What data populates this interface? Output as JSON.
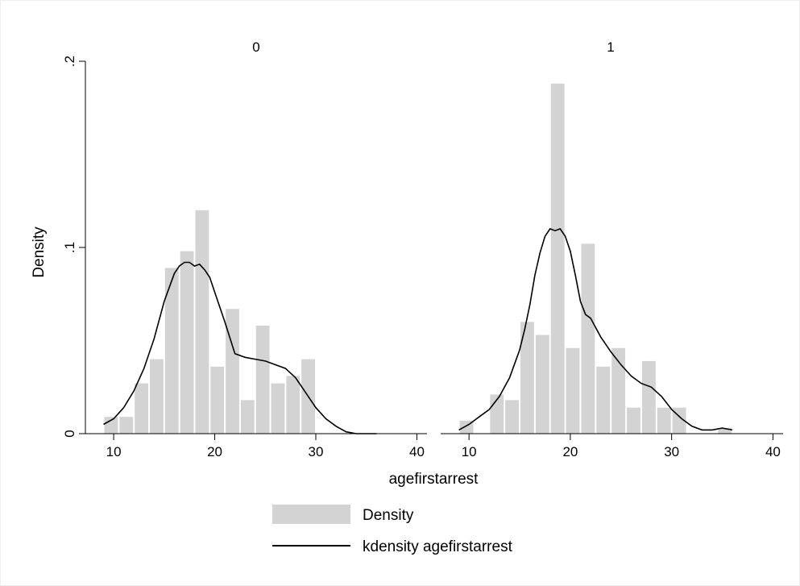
{
  "chart_data": {
    "type": "bar",
    "subtype": "histogram with kernel density overlay",
    "ylabel": "Density",
    "xlabel": "agefirstarrest",
    "xlim": [
      8,
      41
    ],
    "ylim": [
      0,
      0.2
    ],
    "xticks": [
      10,
      20,
      30,
      40
    ],
    "xtick_labels": [
      "10",
      "20",
      "30",
      "40"
    ],
    "yticks": [
      0,
      0.1,
      0.2
    ],
    "ytick_labels": [
      "0",
      ".1",
      ".2"
    ],
    "grid": false,
    "legend": {
      "placement": "bottom-center",
      "entries": [
        "Density",
        "kdensity agefirstarrest"
      ]
    },
    "colors": {
      "bars": "#d3d3d3",
      "line": "#000000"
    },
    "panels": [
      {
        "title": "0",
        "histogram": {
          "bin_width": 1.5,
          "bin_starts": [
            9,
            10.5,
            12,
            13.5,
            15,
            16.5,
            18,
            19.5,
            21,
            22.5,
            24,
            25.5,
            27,
            28.5
          ],
          "values": [
            0.009,
            0.009,
            0.027,
            0.04,
            0.089,
            0.098,
            0.12,
            0.036,
            0.067,
            0.018,
            0.058,
            0.027,
            0.031,
            0.04
          ]
        },
        "kdensity": {
          "x": [
            9,
            10,
            11,
            12,
            13,
            14,
            15,
            16,
            16.5,
            17,
            17.5,
            18,
            18.5,
            19,
            19.5,
            20,
            21,
            22,
            23,
            24,
            25,
            26,
            27,
            28,
            29,
            30,
            31,
            32,
            33,
            34,
            35,
            36
          ],
          "y": [
            0.005,
            0.008,
            0.014,
            0.023,
            0.035,
            0.051,
            0.071,
            0.086,
            0.09,
            0.092,
            0.092,
            0.09,
            0.091,
            0.088,
            0.084,
            0.076,
            0.06,
            0.043,
            0.041,
            0.04,
            0.039,
            0.037,
            0.035,
            0.03,
            0.022,
            0.014,
            0.008,
            0.004,
            0.001,
            0.0,
            0.0,
            0.0
          ]
        }
      },
      {
        "title": "1",
        "histogram": {
          "bin_width": 1.5,
          "bin_starts": [
            9,
            10.5,
            12,
            13.5,
            15,
            16.5,
            18,
            19.5,
            21,
            22.5,
            24,
            25.5,
            27,
            28.5,
            30,
            31.5,
            33,
            34.5
          ],
          "values": [
            0.007,
            0.0,
            0.021,
            0.018,
            0.06,
            0.053,
            0.188,
            0.046,
            0.102,
            0.036,
            0.046,
            0.014,
            0.039,
            0.014,
            0.014,
            0.0,
            0.0,
            0.003
          ]
        },
        "kdensity": {
          "x": [
            9,
            10,
            11,
            12,
            13,
            14,
            15,
            15.5,
            16,
            16.5,
            17,
            17.5,
            18,
            18.5,
            19,
            19.5,
            20,
            20.5,
            21,
            21.5,
            22,
            23,
            24,
            25,
            26,
            27,
            28,
            29,
            30,
            31,
            32,
            33,
            34,
            35,
            36
          ],
          "y": [
            0.002,
            0.005,
            0.009,
            0.013,
            0.02,
            0.03,
            0.045,
            0.056,
            0.069,
            0.085,
            0.097,
            0.106,
            0.11,
            0.109,
            0.11,
            0.106,
            0.098,
            0.085,
            0.071,
            0.064,
            0.062,
            0.052,
            0.044,
            0.037,
            0.031,
            0.027,
            0.025,
            0.02,
            0.013,
            0.008,
            0.004,
            0.002,
            0.002,
            0.003,
            0.002
          ]
        }
      }
    ]
  }
}
